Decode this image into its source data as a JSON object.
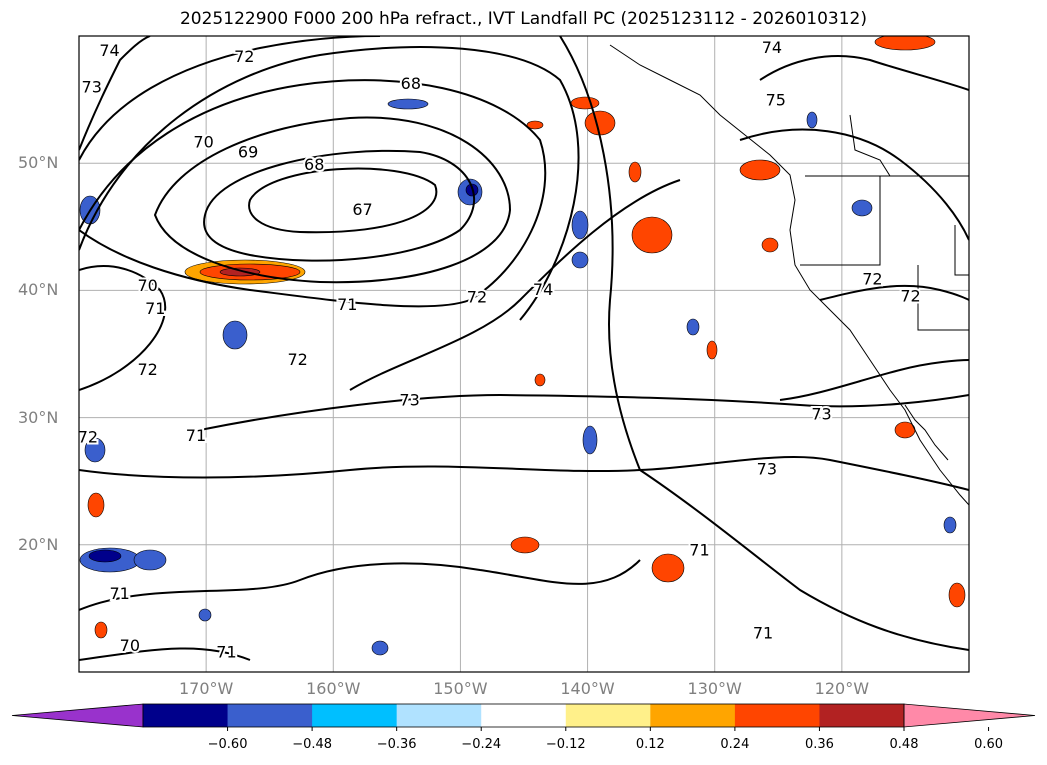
{
  "title": "2025122900 F000 200 hPa refract., IVT Landfall PC (2025123112 - 2026010312)",
  "map": {
    "lon_range": [
      -180,
      -110
    ],
    "lat_range": [
      10,
      60
    ],
    "lat_labels": [
      {
        "lat": 50,
        "text": "50°N"
      },
      {
        "lat": 40,
        "text": "40°N"
      },
      {
        "lat": 30,
        "text": "30°N"
      },
      {
        "lat": 20,
        "text": "20°N"
      }
    ],
    "lon_labels": [
      {
        "lon": -170,
        "text": "170°W"
      },
      {
        "lon": -160,
        "text": "160°W"
      },
      {
        "lon": -150,
        "text": "150°W"
      },
      {
        "lon": -140,
        "text": "140°W"
      },
      {
        "lon": -130,
        "text": "130°W"
      },
      {
        "lon": -120,
        "text": "120°W"
      }
    ],
    "contour_labels": [
      {
        "text": "74",
        "lon": -177.6,
        "lat": 58.8
      },
      {
        "text": "72",
        "lon": -167.0,
        "lat": 58.3
      },
      {
        "text": "68",
        "lon": -153.9,
        "lat": 56.2
      },
      {
        "text": "73",
        "lon": -179.0,
        "lat": 55.9
      },
      {
        "text": "74",
        "lon": -125.5,
        "lat": 59.0
      },
      {
        "text": "75",
        "lon": -125.2,
        "lat": 54.9
      },
      {
        "text": "70",
        "lon": -170.2,
        "lat": 51.6
      },
      {
        "text": "69",
        "lon": -166.7,
        "lat": 50.8
      },
      {
        "text": "68",
        "lon": -161.5,
        "lat": 49.8
      },
      {
        "text": "67",
        "lon": -157.7,
        "lat": 46.3
      },
      {
        "text": "70",
        "lon": -174.6,
        "lat": 40.3
      },
      {
        "text": "71",
        "lon": -174.0,
        "lat": 38.5
      },
      {
        "text": "71",
        "lon": -158.9,
        "lat": 38.8
      },
      {
        "text": "72",
        "lon": -148.7,
        "lat": 39.4
      },
      {
        "text": "74",
        "lon": -143.5,
        "lat": 40.0
      },
      {
        "text": "72",
        "lon": -117.6,
        "lat": 40.8
      },
      {
        "text": "72",
        "lon": -114.6,
        "lat": 39.5
      },
      {
        "text": "72",
        "lon": -174.6,
        "lat": 33.7
      },
      {
        "text": "72",
        "lon": -162.8,
        "lat": 34.5
      },
      {
        "text": "73",
        "lon": -154.0,
        "lat": 31.3
      },
      {
        "text": "73",
        "lon": -121.6,
        "lat": 30.2
      },
      {
        "text": "71",
        "lon": -170.8,
        "lat": 28.5
      },
      {
        "text": "72",
        "lon": -179.3,
        "lat": 28.4
      },
      {
        "text": "73",
        "lon": -125.9,
        "lat": 25.9
      },
      {
        "text": "71",
        "lon": -131.2,
        "lat": 19.5
      },
      {
        "text": "71",
        "lon": -176.8,
        "lat": 16.1
      },
      {
        "text": "71",
        "lon": -126.2,
        "lat": 13.0
      },
      {
        "text": "70",
        "lon": -176.0,
        "lat": 12.0
      },
      {
        "text": "71",
        "lon": -168.4,
        "lat": 11.5
      }
    ]
  },
  "colorbar": {
    "colors": [
      "#9932cc",
      "#00008b",
      "#3a5fcd",
      "#00bfff",
      "#b0e2ff",
      "#ffffff",
      "#fff08a",
      "#ffa500",
      "#ff4500",
      "#b22222",
      "#ff89a8"
    ],
    "ticks": [
      "−0.60",
      "−0.48",
      "−0.36",
      "−0.24",
      "−0.12",
      "0.12",
      "0.24",
      "0.36",
      "0.48",
      "0.60"
    ]
  }
}
